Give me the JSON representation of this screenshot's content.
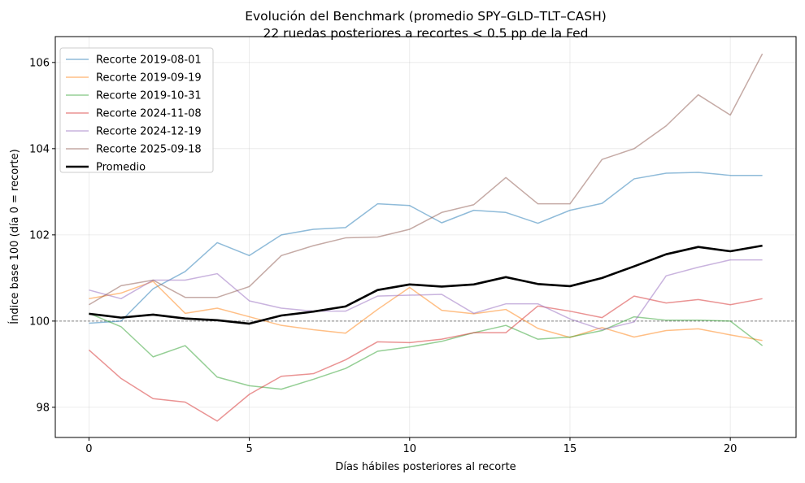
{
  "chart_data": {
    "type": "line",
    "title": "Evolución del Benchmark (promedio SPY–GLD–TLT–CASH)",
    "subtitle": "22 ruedas posteriores a recortes < 0.5 pp de la Fed",
    "xlabel": "Días hábiles posteriores al recorte",
    "ylabel": "Índice base 100 (día 0 = recorte)",
    "xlim": [
      -1.05,
      22.05
    ],
    "ylim": [
      97.3,
      106.6
    ],
    "xticks": [
      0,
      5,
      10,
      15,
      20
    ],
    "yticks": [
      98,
      100,
      102,
      104,
      106
    ],
    "xtick_labels": [
      "0",
      "5",
      "10",
      "15",
      "20"
    ],
    "ytick_labels": [
      "98",
      "100",
      "102",
      "104",
      "106"
    ],
    "grid": true,
    "legend_position": "top-left",
    "reference_line": 100,
    "x": [
      0,
      1,
      2,
      3,
      4,
      5,
      6,
      7,
      8,
      9,
      10,
      11,
      12,
      13,
      14,
      15,
      16,
      17,
      18,
      19,
      20,
      21
    ],
    "series": [
      {
        "name": "Recorte 2019-08-01",
        "color": "#1f77b4",
        "opacity": 0.5,
        "width": 1.5,
        "values": [
          99.95,
          100.0,
          100.75,
          101.15,
          101.82,
          101.52,
          102.0,
          102.13,
          102.17,
          102.72,
          102.68,
          102.28,
          102.57,
          102.52,
          102.27,
          102.57,
          102.73,
          103.3,
          103.43,
          103.45,
          103.38,
          103.38
        ]
      },
      {
        "name": "Recorte 2019-09-19",
        "color": "#ff7f0e",
        "opacity": 0.5,
        "width": 1.5,
        "values": [
          100.52,
          100.65,
          100.92,
          100.18,
          100.3,
          100.1,
          99.9,
          99.8,
          99.72,
          100.27,
          100.78,
          100.25,
          100.17,
          100.27,
          99.83,
          99.62,
          99.85,
          99.63,
          99.78,
          99.82,
          99.68,
          99.55
        ]
      },
      {
        "name": "Recorte 2019-10-31",
        "color": "#2ca02c",
        "opacity": 0.5,
        "width": 1.5,
        "values": [
          100.18,
          99.87,
          99.17,
          99.43,
          98.7,
          98.5,
          98.42,
          98.65,
          98.9,
          99.3,
          99.4,
          99.53,
          99.73,
          99.9,
          99.58,
          99.63,
          99.78,
          100.1,
          100.02,
          100.02,
          100.0,
          99.43
        ]
      },
      {
        "name": "Recorte 2024-11-08",
        "color": "#d62728",
        "opacity": 0.5,
        "width": 1.5,
        "values": [
          99.33,
          98.67,
          98.2,
          98.12,
          97.68,
          98.3,
          98.72,
          98.78,
          99.1,
          99.52,
          99.5,
          99.58,
          99.73,
          99.73,
          100.35,
          100.23,
          100.08,
          100.58,
          100.42,
          100.5,
          100.38,
          100.52
        ]
      },
      {
        "name": "Recorte 2024-12-19",
        "color": "#9467bd",
        "opacity": 0.5,
        "width": 1.5,
        "values": [
          100.72,
          100.52,
          100.95,
          100.95,
          101.1,
          100.47,
          100.3,
          100.23,
          100.23,
          100.58,
          100.6,
          100.62,
          100.18,
          100.4,
          100.4,
          100.05,
          99.8,
          99.98,
          101.05,
          101.25,
          101.42,
          101.42
        ]
      },
      {
        "name": "Recorte 2025-09-18",
        "color": "#8c564b",
        "opacity": 0.5,
        "width": 1.5,
        "values": [
          100.38,
          100.82,
          100.95,
          100.55,
          100.55,
          100.8,
          101.52,
          101.75,
          101.93,
          101.95,
          102.13,
          102.52,
          102.7,
          103.33,
          102.72,
          102.72,
          103.75,
          104.0,
          104.53,
          105.25,
          104.78,
          106.2
        ]
      },
      {
        "name": "Promedio",
        "color": "#000000",
        "opacity": 1,
        "width": 2.6,
        "values": [
          100.17,
          100.08,
          100.15,
          100.06,
          100.02,
          99.94,
          100.13,
          100.22,
          100.34,
          100.72,
          100.85,
          100.8,
          100.85,
          101.02,
          100.86,
          100.81,
          101.0,
          101.27,
          101.55,
          101.72,
          101.62,
          101.75
        ]
      }
    ]
  }
}
